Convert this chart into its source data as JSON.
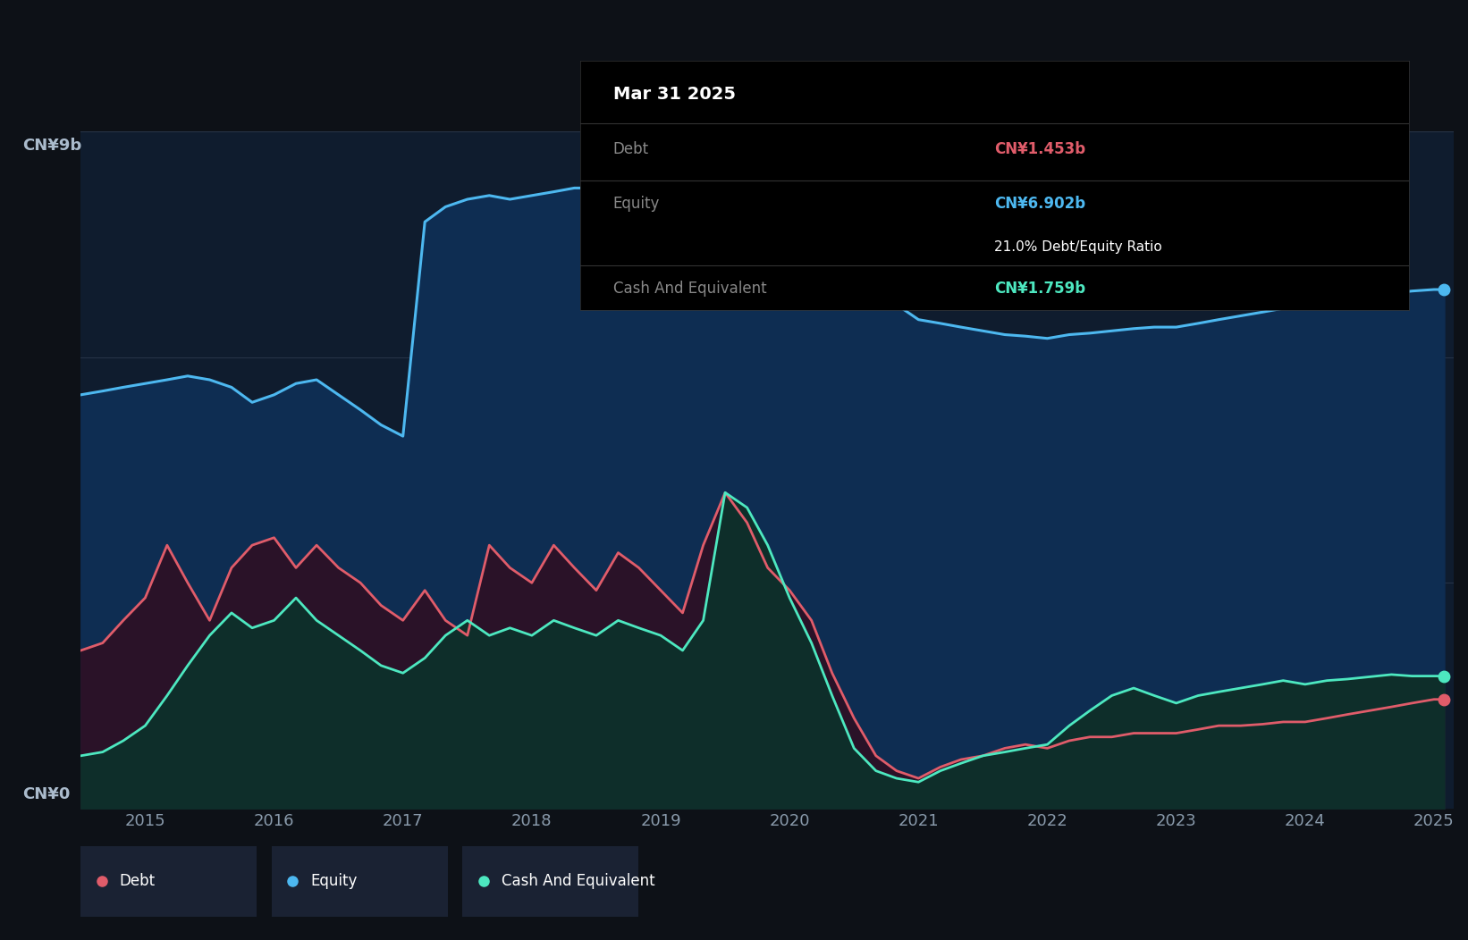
{
  "bg_color": "#0d1117",
  "plot_bg_color": "#0f1c2e",
  "outer_bg_color": "#0d1117",
  "grid_color": "#263347",
  "ylabel_top": "CN¥9b",
  "ylabel_bottom": "CN¥0",
  "x_ticks": [
    2015,
    2016,
    2017,
    2018,
    2019,
    2020,
    2021,
    2022,
    2023,
    2024,
    2025
  ],
  "tooltip_title": "Mar 31 2025",
  "tooltip_debt_label": "Debt",
  "tooltip_debt_value": "CN¥1.453b",
  "tooltip_equity_label": "Equity",
  "tooltip_equity_value": "CN¥6.902b",
  "tooltip_ratio": "21.0% Debt/Equity Ratio",
  "tooltip_cash_label": "Cash And Equivalent",
  "tooltip_cash_value": "CN¥1.759b",
  "debt_color": "#e05c6a",
  "equity_color": "#4db8f0",
  "cash_color": "#4de8c0",
  "equity_fill_color": "#0e2d52",
  "debt_fill_color": "#2a1228",
  "cash_fill_color": "#0e2e2a",
  "legend_bg": "#1a2233",
  "equity_data_x": [
    2014.5,
    2014.67,
    2014.83,
    2015.0,
    2015.17,
    2015.33,
    2015.5,
    2015.67,
    2015.83,
    2016.0,
    2016.17,
    2016.33,
    2016.5,
    2016.67,
    2016.83,
    2017.0,
    2017.17,
    2017.33,
    2017.5,
    2017.67,
    2017.83,
    2018.0,
    2018.17,
    2018.33,
    2018.5,
    2018.67,
    2018.83,
    2019.0,
    2019.17,
    2019.33,
    2019.5,
    2019.67,
    2019.83,
    2020.0,
    2020.17,
    2020.33,
    2020.5,
    2020.67,
    2020.83,
    2021.0,
    2021.17,
    2021.33,
    2021.5,
    2021.67,
    2021.83,
    2022.0,
    2022.17,
    2022.33,
    2022.5,
    2022.67,
    2022.83,
    2023.0,
    2023.17,
    2023.33,
    2023.5,
    2023.67,
    2023.83,
    2024.0,
    2024.17,
    2024.33,
    2024.5,
    2024.67,
    2024.83,
    2025.0,
    2025.08
  ],
  "equity_data_y": [
    5.5,
    5.55,
    5.6,
    5.65,
    5.7,
    5.75,
    5.7,
    5.6,
    5.4,
    5.5,
    5.65,
    5.7,
    5.5,
    5.3,
    5.1,
    4.95,
    7.8,
    8.0,
    8.1,
    8.15,
    8.1,
    8.15,
    8.2,
    8.25,
    8.25,
    8.28,
    8.3,
    8.3,
    8.32,
    8.35,
    8.32,
    8.3,
    8.28,
    8.25,
    8.1,
    7.9,
    7.5,
    7.1,
    6.7,
    6.5,
    6.45,
    6.4,
    6.35,
    6.3,
    6.28,
    6.25,
    6.3,
    6.32,
    6.35,
    6.38,
    6.4,
    6.4,
    6.45,
    6.5,
    6.55,
    6.6,
    6.65,
    6.7,
    6.72,
    6.75,
    6.8,
    6.85,
    6.88,
    6.9,
    6.9
  ],
  "debt_data_x": [
    2014.5,
    2014.67,
    2014.83,
    2015.0,
    2015.17,
    2015.33,
    2015.5,
    2015.67,
    2015.83,
    2016.0,
    2016.17,
    2016.33,
    2016.5,
    2016.67,
    2016.83,
    2017.0,
    2017.17,
    2017.33,
    2017.5,
    2017.67,
    2017.83,
    2018.0,
    2018.17,
    2018.33,
    2018.5,
    2018.67,
    2018.83,
    2019.0,
    2019.17,
    2019.33,
    2019.5,
    2019.67,
    2019.83,
    2020.0,
    2020.17,
    2020.33,
    2020.5,
    2020.67,
    2020.83,
    2021.0,
    2021.17,
    2021.33,
    2021.5,
    2021.67,
    2021.83,
    2022.0,
    2022.17,
    2022.33,
    2022.5,
    2022.67,
    2022.83,
    2023.0,
    2023.17,
    2023.33,
    2023.5,
    2023.67,
    2023.83,
    2024.0,
    2024.17,
    2024.33,
    2024.5,
    2024.67,
    2024.83,
    2025.0,
    2025.08
  ],
  "debt_data_y": [
    2.1,
    2.2,
    2.5,
    2.8,
    3.5,
    3.0,
    2.5,
    3.2,
    3.5,
    3.6,
    3.2,
    3.5,
    3.2,
    3.0,
    2.7,
    2.5,
    2.9,
    2.5,
    2.3,
    3.5,
    3.2,
    3.0,
    3.5,
    3.2,
    2.9,
    3.4,
    3.2,
    2.9,
    2.6,
    3.5,
    4.2,
    3.8,
    3.2,
    2.9,
    2.5,
    1.8,
    1.2,
    0.7,
    0.5,
    0.4,
    0.55,
    0.65,
    0.7,
    0.8,
    0.85,
    0.8,
    0.9,
    0.95,
    0.95,
    1.0,
    1.0,
    1.0,
    1.05,
    1.1,
    1.1,
    1.12,
    1.15,
    1.15,
    1.2,
    1.25,
    1.3,
    1.35,
    1.4,
    1.45,
    1.45
  ],
  "cash_data_x": [
    2014.5,
    2014.67,
    2014.83,
    2015.0,
    2015.17,
    2015.33,
    2015.5,
    2015.67,
    2015.83,
    2016.0,
    2016.17,
    2016.33,
    2016.5,
    2016.67,
    2016.83,
    2017.0,
    2017.17,
    2017.33,
    2017.5,
    2017.67,
    2017.83,
    2018.0,
    2018.17,
    2018.33,
    2018.5,
    2018.67,
    2018.83,
    2019.0,
    2019.17,
    2019.33,
    2019.5,
    2019.67,
    2019.83,
    2020.0,
    2020.17,
    2020.33,
    2020.5,
    2020.67,
    2020.83,
    2021.0,
    2021.17,
    2021.33,
    2021.5,
    2021.67,
    2021.83,
    2022.0,
    2022.17,
    2022.33,
    2022.5,
    2022.67,
    2022.83,
    2023.0,
    2023.17,
    2023.33,
    2023.5,
    2023.67,
    2023.83,
    2024.0,
    2024.17,
    2024.33,
    2024.5,
    2024.67,
    2024.83,
    2025.0,
    2025.08
  ],
  "cash_data_y": [
    0.7,
    0.75,
    0.9,
    1.1,
    1.5,
    1.9,
    2.3,
    2.6,
    2.4,
    2.5,
    2.8,
    2.5,
    2.3,
    2.1,
    1.9,
    1.8,
    2.0,
    2.3,
    2.5,
    2.3,
    2.4,
    2.3,
    2.5,
    2.4,
    2.3,
    2.5,
    2.4,
    2.3,
    2.1,
    2.5,
    4.2,
    4.0,
    3.5,
    2.8,
    2.2,
    1.5,
    0.8,
    0.5,
    0.4,
    0.35,
    0.5,
    0.6,
    0.7,
    0.75,
    0.8,
    0.85,
    1.1,
    1.3,
    1.5,
    1.6,
    1.5,
    1.4,
    1.5,
    1.55,
    1.6,
    1.65,
    1.7,
    1.65,
    1.7,
    1.72,
    1.75,
    1.78,
    1.76,
    1.76,
    1.76
  ],
  "ymax": 9.0,
  "xmin": 2014.5,
  "xmax": 2025.15
}
